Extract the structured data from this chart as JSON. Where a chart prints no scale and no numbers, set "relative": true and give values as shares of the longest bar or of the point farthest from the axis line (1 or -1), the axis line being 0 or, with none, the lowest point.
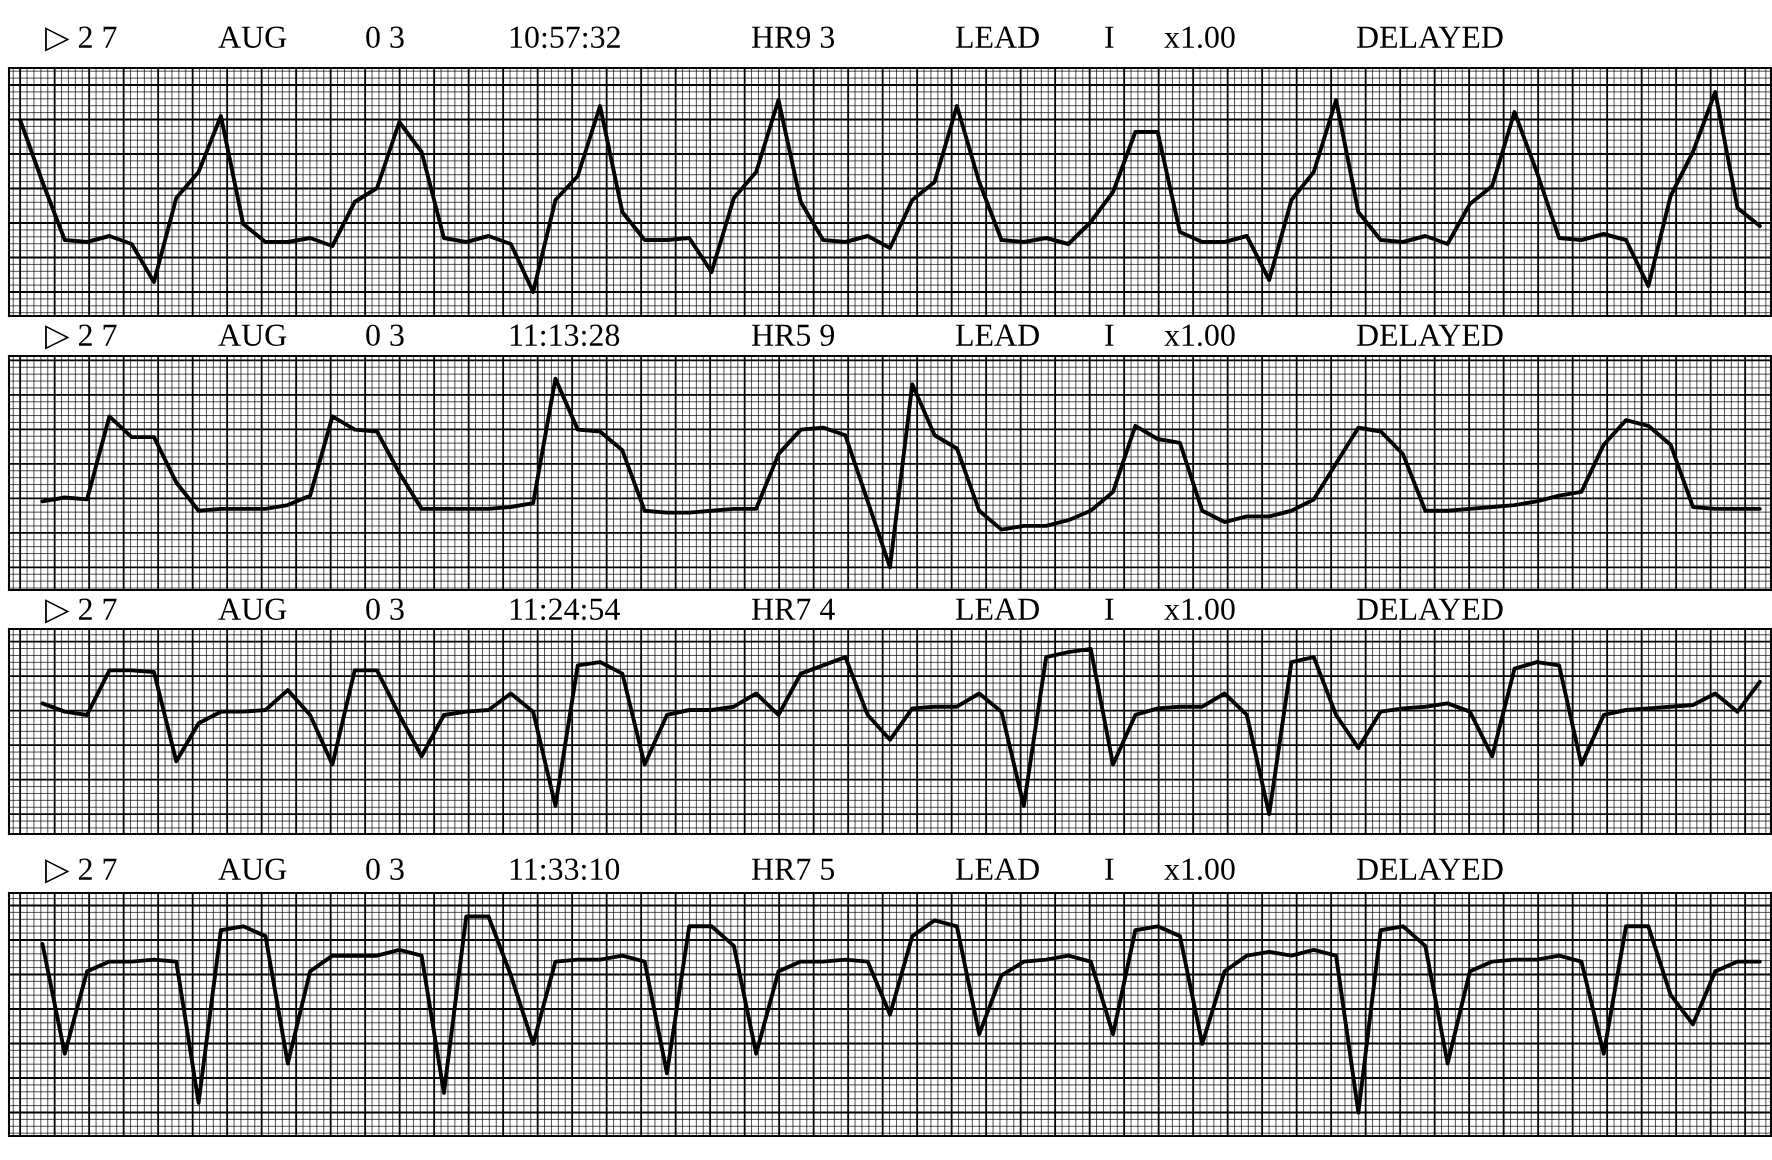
{
  "chart_data": [
    {
      "type": "line",
      "relative": true,
      "grid": true,
      "tick_labels": false,
      "marker": "none",
      "line_style": "solid",
      "annotations": [
        "▷ 2 7",
        "AUG",
        "0 3",
        "10:57:32",
        "HR9 3",
        "LEAD",
        "I",
        "x1.00",
        "DELAYED"
      ],
      "categories": [
        null,
        null,
        null,
        null,
        null,
        null,
        null,
        null,
        null,
        null,
        null,
        null,
        null,
        null,
        null,
        null,
        null,
        null,
        null,
        null,
        null,
        null,
        null,
        null,
        null,
        null,
        null,
        null,
        null,
        null,
        null,
        null,
        null,
        null,
        null,
        null,
        null,
        null,
        null,
        null,
        null,
        null,
        null,
        null,
        null,
        null,
        null,
        null,
        null,
        null,
        null,
        null,
        null,
        null,
        null,
        null,
        null,
        null,
        null,
        null,
        null,
        null,
        null,
        null,
        null,
        null,
        null,
        null,
        null,
        null,
        null,
        null,
        null,
        null,
        null,
        null,
        null,
        null,
        null
      ],
      "series": [
        {
          "color": "#000000",
          "values": [
            0.86,
            0.55,
            0.26,
            0.25,
            0.28,
            0.24,
            0.05,
            0.47,
            0.6,
            0.88,
            0.34,
            0.25,
            0.25,
            0.27,
            0.23,
            0.45,
            0.52,
            0.85,
            0.7,
            0.27,
            0.25,
            0.28,
            0.24,
            0.0,
            0.46,
            0.58,
            0.93,
            0.4,
            0.26,
            0.26,
            0.27,
            0.1,
            0.47,
            0.6,
            0.96,
            0.45,
            0.26,
            0.25,
            0.28,
            0.22,
            0.46,
            0.55,
            0.93,
            0.55,
            0.26,
            0.25,
            0.27,
            0.24,
            0.35,
            0.5,
            0.8,
            0.8,
            0.3,
            0.25,
            0.25,
            0.28,
            0.06,
            0.46,
            0.6,
            0.96,
            0.4,
            0.26,
            0.25,
            0.28,
            0.24,
            0.44,
            0.53,
            0.9,
            0.6,
            0.27,
            0.26,
            0.29,
            0.26,
            0.03,
            0.48,
            0.7,
            1.0,
            0.42,
            0.33
          ]
        }
      ]
    },
    {
      "type": "line",
      "relative": true,
      "grid": true,
      "tick_labels": false,
      "marker": "none",
      "line_style": "solid",
      "annotations": [
        "▷ 2 7",
        "AUG",
        "0 3",
        "11:13:28",
        "HR5 9",
        "LEAD",
        "I",
        "x1.00",
        "DELAYED"
      ],
      "categories": [
        null,
        null,
        null,
        null,
        null,
        null,
        null,
        null,
        null,
        null,
        null,
        null,
        null,
        null,
        null,
        null,
        null,
        null,
        null,
        null,
        null,
        null,
        null,
        null,
        null,
        null,
        null,
        null,
        null,
        null,
        null,
        null,
        null,
        null,
        null,
        null,
        null,
        null,
        null,
        null,
        null,
        null,
        null,
        null,
        null,
        null,
        null,
        null,
        null,
        null,
        null,
        null,
        null,
        null,
        null,
        null,
        null,
        null,
        null,
        null,
        null,
        null,
        null,
        null,
        null,
        null,
        null,
        null,
        null,
        null,
        null,
        null,
        null,
        null,
        null,
        null,
        null,
        null,
        null
      ],
      "series": [
        {
          "color": "#000000",
          "values": [
            null,
            0.35,
            0.37,
            0.36,
            0.8,
            0.69,
            0.69,
            0.45,
            0.3,
            0.31,
            0.31,
            0.31,
            0.33,
            0.38,
            0.8,
            0.73,
            0.72,
            0.5,
            0.31,
            0.31,
            0.31,
            0.31,
            0.32,
            0.34,
            1.0,
            0.73,
            0.72,
            0.62,
            0.3,
            0.29,
            0.29,
            0.3,
            0.31,
            0.31,
            0.6,
            0.73,
            0.74,
            0.7,
            0.35,
            0.0,
            0.97,
            0.7,
            0.63,
            0.3,
            0.2,
            0.22,
            0.22,
            0.25,
            0.3,
            0.4,
            0.75,
            0.68,
            0.66,
            0.3,
            0.24,
            0.27,
            0.27,
            0.3,
            0.36,
            0.55,
            0.74,
            0.72,
            0.6,
            0.3,
            0.3,
            0.31,
            0.32,
            0.33,
            0.35,
            0.38,
            0.4,
            0.65,
            0.78,
            0.75,
            0.65,
            0.32,
            0.31,
            0.31,
            0.31
          ]
        }
      ]
    },
    {
      "type": "line",
      "relative": true,
      "grid": true,
      "tick_labels": false,
      "marker": "none",
      "line_style": "solid",
      "annotations": [
        "▷ 2 7",
        "AUG",
        "0 3",
        "11:24:54",
        "HR7 4",
        "LEAD",
        "I",
        "x1.00",
        "DELAYED"
      ],
      "categories": [
        null,
        null,
        null,
        null,
        null,
        null,
        null,
        null,
        null,
        null,
        null,
        null,
        null,
        null,
        null,
        null,
        null,
        null,
        null,
        null,
        null,
        null,
        null,
        null,
        null,
        null,
        null,
        null,
        null,
        null,
        null,
        null,
        null,
        null,
        null,
        null,
        null,
        null,
        null,
        null,
        null,
        null,
        null,
        null,
        null,
        null,
        null,
        null,
        null,
        null,
        null,
        null,
        null,
        null,
        null,
        null,
        null,
        null,
        null,
        null,
        null,
        null,
        null,
        null,
        null,
        null,
        null,
        null,
        null,
        null,
        null,
        null,
        null,
        null,
        null,
        null,
        null,
        null,
        null
      ],
      "series": [
        {
          "color": "#000000",
          "values": [
            null,
            0.67,
            0.62,
            0.6,
            0.87,
            0.87,
            0.86,
            0.32,
            0.55,
            0.62,
            0.62,
            0.63,
            0.75,
            0.6,
            0.3,
            0.87,
            0.87,
            0.6,
            0.35,
            0.6,
            0.62,
            0.63,
            0.73,
            0.62,
            0.05,
            0.9,
            0.92,
            0.85,
            0.3,
            0.6,
            0.63,
            0.63,
            0.65,
            0.73,
            0.6,
            0.85,
            0.9,
            0.95,
            0.6,
            0.45,
            0.64,
            0.65,
            0.65,
            0.73,
            0.62,
            0.05,
            0.95,
            0.98,
            1.0,
            0.3,
            0.6,
            0.64,
            0.65,
            0.65,
            0.73,
            0.6,
            0.0,
            0.92,
            0.95,
            0.6,
            0.4,
            0.62,
            0.64,
            0.65,
            0.67,
            0.62,
            0.35,
            0.88,
            0.92,
            0.9,
            0.3,
            0.6,
            0.63,
            0.64,
            0.65,
            0.66,
            0.73,
            0.62,
            0.8
          ]
        }
      ]
    },
    {
      "type": "line",
      "relative": true,
      "grid": true,
      "tick_labels": false,
      "marker": "none",
      "line_style": "solid",
      "annotations": [
        "▷ 2 7",
        "AUG",
        "0 3",
        "11:33:10",
        "HR7 5",
        "LEAD",
        "I",
        "x1.00",
        "DELAYED"
      ],
      "categories": [
        null,
        null,
        null,
        null,
        null,
        null,
        null,
        null,
        null,
        null,
        null,
        null,
        null,
        null,
        null,
        null,
        null,
        null,
        null,
        null,
        null,
        null,
        null,
        null,
        null,
        null,
        null,
        null,
        null,
        null,
        null,
        null,
        null,
        null,
        null,
        null,
        null,
        null,
        null,
        null,
        null,
        null,
        null,
        null,
        null,
        null,
        null,
        null,
        null,
        null,
        null,
        null,
        null,
        null,
        null,
        null,
        null,
        null,
        null,
        null,
        null,
        null,
        null,
        null,
        null,
        null,
        null,
        null,
        null,
        null,
        null,
        null,
        null,
        null,
        null,
        null,
        null,
        null,
        null
      ],
      "series": [
        {
          "color": "#000000",
          "values": [
            null,
            0.86,
            0.3,
            0.72,
            0.77,
            0.77,
            0.78,
            0.77,
            0.05,
            0.93,
            0.95,
            0.9,
            0.25,
            0.72,
            0.8,
            0.8,
            0.8,
            0.83,
            0.8,
            0.1,
            1.0,
            1.0,
            0.7,
            0.35,
            0.77,
            0.78,
            0.78,
            0.8,
            0.77,
            0.2,
            0.95,
            0.95,
            0.85,
            0.3,
            0.72,
            0.77,
            0.77,
            0.78,
            0.77,
            0.5,
            0.9,
            0.98,
            0.95,
            0.4,
            0.7,
            0.77,
            0.78,
            0.8,
            0.77,
            0.4,
            0.93,
            0.95,
            0.9,
            0.35,
            0.72,
            0.8,
            0.82,
            0.8,
            0.83,
            0.8,
            0.0,
            0.93,
            0.95,
            0.85,
            0.25,
            0.72,
            0.77,
            0.78,
            0.78,
            0.8,
            0.77,
            0.3,
            0.95,
            0.95,
            0.6,
            0.45,
            0.72,
            0.77,
            0.77
          ]
        }
      ]
    }
  ]
}
